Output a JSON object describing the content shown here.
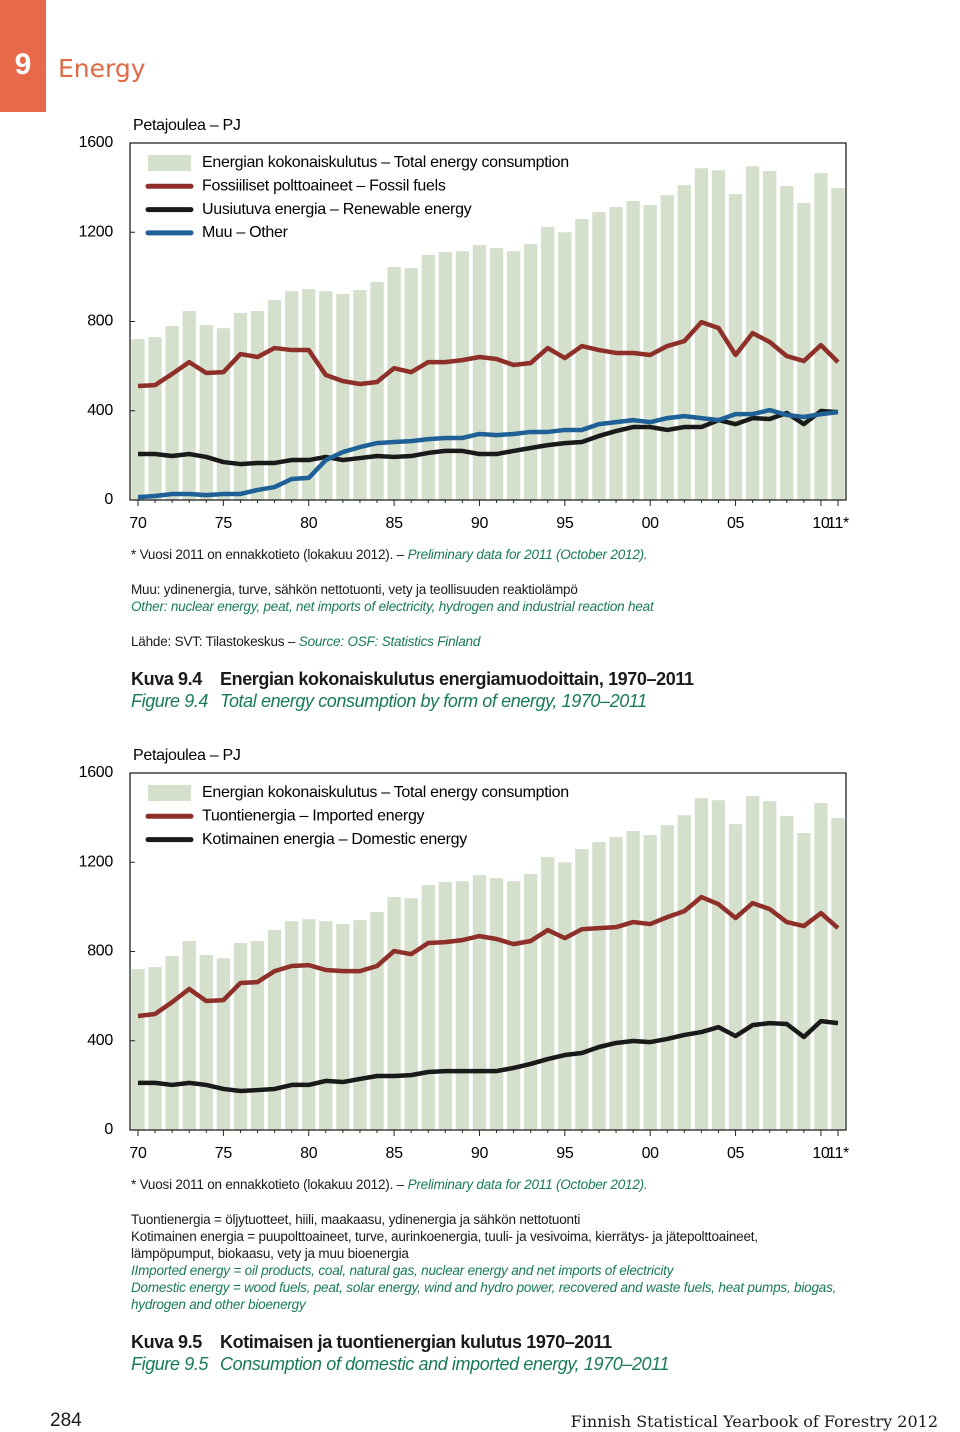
{
  "header": {
    "chapter_number": "9",
    "chapter_title": "Energy"
  },
  "chart_data": [
    {
      "type": "combo",
      "unit_label": "Petajoulea – PJ",
      "categories": [
        "70",
        null,
        null,
        null,
        null,
        "75",
        null,
        null,
        null,
        null,
        "80",
        null,
        null,
        null,
        null,
        "85",
        null,
        null,
        null,
        null,
        "90",
        null,
        null,
        null,
        null,
        "95",
        null,
        null,
        null,
        null,
        "00",
        null,
        null,
        null,
        null,
        "05",
        null,
        null,
        null,
        null,
        "10",
        "11*"
      ],
      "ylim": [
        0,
        1600
      ],
      "yticks": [
        0,
        400,
        800,
        1200,
        1600
      ],
      "series": [
        {
          "name": "Energian kokonaiskulutus – Total energy consumption",
          "kind": "bar",
          "color": "#d4dfcc",
          "values": [
            721,
            730,
            780,
            847,
            784,
            770,
            838,
            847,
            896,
            936,
            945,
            936,
            923,
            941,
            977,
            1044,
            1039,
            1098,
            1111,
            1115,
            1142,
            1129,
            1115,
            1147,
            1223,
            1200,
            1259,
            1290,
            1313,
            1340,
            1322,
            1366,
            1411,
            1487,
            1478,
            1371,
            1496,
            1474,
            1407,
            1331,
            1465,
            1398
          ]
        },
        {
          "name": "Fossiiliset polttoaineet – Fossil fuels",
          "kind": "line",
          "color": "#8e2f2a",
          "values": [
            511,
            515,
            565,
            618,
            569,
            573,
            654,
            641,
            681,
            672,
            672,
            560,
            533,
            520,
            529,
            591,
            573,
            618,
            618,
            627,
            641,
            632,
            605,
            614,
            681,
            636,
            690,
            672,
            659,
            659,
            650,
            690,
            712,
            797,
            771,
            650,
            748,
            708,
            645,
            623,
            694,
            618
          ]
        },
        {
          "name": "Uusiutuva energia – Renewable energy",
          "kind": "line",
          "color": "#1a1a1a",
          "values": [
            206,
            206,
            197,
            206,
            193,
            170,
            161,
            166,
            166,
            179,
            179,
            193,
            179,
            188,
            197,
            193,
            197,
            211,
            220,
            220,
            206,
            206,
            220,
            233,
            246,
            255,
            260,
            287,
            309,
            327,
            327,
            314,
            327,
            327,
            358,
            340,
            367,
            363,
            390,
            340,
            399,
            394
          ]
        },
        {
          "name": "Muu – Other",
          "kind": "line",
          "color": "#1f6196",
          "values": [
            13,
            18,
            27,
            27,
            22,
            27,
            27,
            45,
            58,
            94,
            99,
            179,
            215,
            237,
            255,
            260,
            264,
            273,
            278,
            278,
            296,
            291,
            296,
            305,
            305,
            314,
            314,
            340,
            349,
            358,
            349,
            367,
            376,
            367,
            358,
            385,
            385,
            403,
            381,
            372,
            385,
            394
          ]
        }
      ],
      "footnote": {
        "fi": "* Vuosi 2011 on ennakkotieto (lokakuu 2012). –",
        "en": "Preliminary data for 2011 (October 2012)."
      },
      "explanation_fi": [
        "Muu: ydinenergia, turve, sähkön nettotuonti, vety ja teollisuuden reaktiolämpö"
      ],
      "explanation_en": [
        "Other: nuclear energy, peat, net imports of electricity, hydrogen and industrial reaction heat"
      ],
      "source": {
        "fi": "Lähde: SVT: Tilastokeskus –",
        "en": "Source: OSF: Statistics Finland"
      },
      "caption": {
        "label_fi": "Kuva 9.4",
        "title_fi": "Energian kokonaiskulutus energiamuodoittain, 1970–2011",
        "label_en": "Figure 9.4",
        "title_en": "Total energy consumption by form of energy, 1970–2011"
      }
    },
    {
      "type": "combo",
      "unit_label": "Petajoulea – PJ",
      "categories": [
        "70",
        null,
        null,
        null,
        null,
        "75",
        null,
        null,
        null,
        null,
        "80",
        null,
        null,
        null,
        null,
        "85",
        null,
        null,
        null,
        null,
        "90",
        null,
        null,
        null,
        null,
        "95",
        null,
        null,
        null,
        null,
        "00",
        null,
        null,
        null,
        null,
        "05",
        null,
        null,
        null,
        null,
        "10",
        "11*"
      ],
      "ylim": [
        0,
        1600
      ],
      "yticks": [
        0,
        400,
        800,
        1200,
        1600
      ],
      "series": [
        {
          "name": "Energian kokonaiskulutus – Total energy consumption",
          "kind": "bar",
          "color": "#d4dfcc",
          "values": [
            721,
            730,
            780,
            847,
            784,
            770,
            838,
            847,
            896,
            936,
            945,
            936,
            923,
            941,
            977,
            1044,
            1039,
            1098,
            1111,
            1115,
            1142,
            1129,
            1115,
            1147,
            1223,
            1200,
            1259,
            1290,
            1313,
            1340,
            1322,
            1366,
            1411,
            1487,
            1478,
            1371,
            1496,
            1474,
            1407,
            1331,
            1465,
            1398
          ]
        },
        {
          "name": "Tuontienergia – Imported energy",
          "kind": "line",
          "color": "#8e2f2a",
          "values": [
            511,
            520,
            573,
            632,
            578,
            582,
            659,
            663,
            712,
            735,
            739,
            717,
            712,
            712,
            735,
            802,
            788,
            838,
            842,
            851,
            869,
            856,
            833,
            847,
            896,
            860,
            900,
            905,
            909,
            932,
            923,
            954,
            981,
            1044,
            1012,
            950,
            1017,
            990,
            932,
            914,
            972,
            905
          ]
        },
        {
          "name": "Kotimainen energia – Domestic energy",
          "kind": "line",
          "color": "#1a1a1a",
          "values": [
            211,
            211,
            202,
            211,
            202,
            184,
            175,
            179,
            184,
            202,
            202,
            220,
            215,
            229,
            242,
            242,
            246,
            260,
            264,
            264,
            264,
            264,
            278,
            296,
            318,
            336,
            345,
            372,
            390,
            399,
            394,
            408,
            426,
            439,
            461,
            421,
            470,
            479,
            475,
            417,
            488,
            479
          ]
        }
      ],
      "footnote": {
        "fi": "* Vuosi 2011 on ennakkotieto (lokakuu 2012). –",
        "en": "Preliminary data for 2011 (October 2012)."
      },
      "explanation_fi": [
        "Tuontienergia = öljytuotteet, hiili, maakaasu, ydinenergia ja sähkön nettotuonti",
        "Kotimainen energia = puupolttoaineet, turve, aurinkoenergia, tuuli- ja vesivoima, kierrätys- ja jätepolttoaineet, lämpöpumput, biokaasu, vety ja muu bioenergia"
      ],
      "explanation_en": [
        "IImported energy = oil products, coal, natural gas, nuclear energy and net imports of electricity",
        "Domestic energy = wood fuels, peat, solar energy, wind and hydro power, recovered and waste fuels, heat pumps, biogas, hydrogen and other bioenergy"
      ],
      "caption": {
        "label_fi": "Kuva 9.5",
        "title_fi": "Kotimaisen ja tuontienergian kulutus 1970–2011",
        "label_en": "Figure 9.5",
        "title_en": "Consumption of domestic and imported energy, 1970–2011"
      }
    }
  ],
  "footer": {
    "page_number": "284",
    "publication": "Finnish Statistical Yearbook of Forestry 2012"
  }
}
